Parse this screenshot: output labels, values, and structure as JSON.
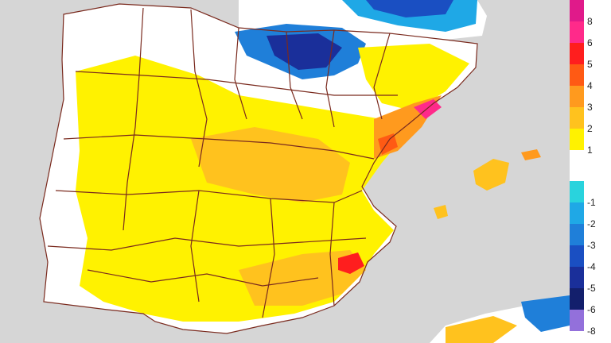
{
  "map": {
    "sea_color": "#d6d6d6",
    "land_neutral_color": "#ffffff",
    "border_color": "#7a2a1e"
  },
  "legend": {
    "positive": [
      {
        "label": "8",
        "color": "#e01a8a"
      },
      {
        "label": "6",
        "color": "#ff2a8a"
      },
      {
        "label": "5",
        "color": "#ff1e1e"
      },
      {
        "label": "4",
        "color": "#ff5a14"
      },
      {
        "label": "3",
        "color": "#ff9a1e"
      },
      {
        "label": "2",
        "color": "#ffc21e"
      },
      {
        "label": "1",
        "color": "#fff200"
      }
    ],
    "negative": [
      {
        "label": "-1",
        "color": "#29d3dd"
      },
      {
        "label": "-2",
        "color": "#1fa8e6"
      },
      {
        "label": "-3",
        "color": "#1f7fd9"
      },
      {
        "label": "-4",
        "color": "#1a4fc2"
      },
      {
        "label": "-5",
        "color": "#1a2f9a"
      },
      {
        "label": "-6",
        "color": "#131f6c"
      },
      {
        "label": "-8",
        "color": "#9370db"
      }
    ]
  }
}
